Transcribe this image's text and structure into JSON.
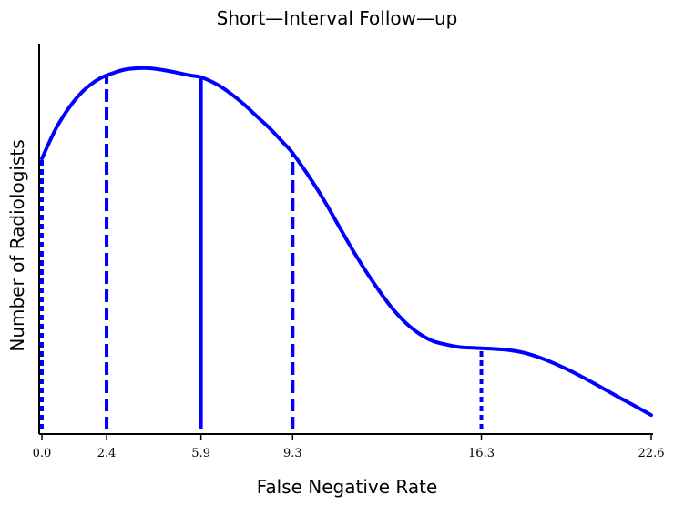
{
  "chart_data": {
    "type": "line",
    "title": "Short—Interval Follow—up",
    "xlabel": "False Negative Rate",
    "ylabel": "Number of Radiologists",
    "xlim": [
      0,
      22.6
    ],
    "ylim": [
      0,
      1
    ],
    "grid": false,
    "color": "#0000ff",
    "x_ticks": [
      "0.0",
      "2.4",
      "5.9",
      "9.3",
      "16.3",
      "22.6"
    ],
    "curve": {
      "x": [
        0.0,
        0.5,
        1.0,
        1.5,
        2.0,
        2.4,
        3.0,
        3.5,
        4.0,
        4.5,
        5.0,
        5.5,
        5.9,
        6.5,
        7.0,
        7.5,
        8.0,
        8.5,
        9.0,
        9.3,
        10.0,
        10.5,
        11.0,
        11.5,
        12.0,
        12.5,
        13.0,
        13.5,
        14.0,
        14.5,
        15.0,
        15.5,
        16.0,
        16.3,
        17.0,
        17.5,
        18.0,
        18.5,
        19.0,
        19.5,
        20.0,
        20.5,
        21.0,
        21.5,
        22.0,
        22.6
      ],
      "y": [
        0.75,
        0.83,
        0.89,
        0.935,
        0.965,
        0.98,
        0.995,
        1.0,
        1.0,
        0.995,
        0.988,
        0.98,
        0.975,
        0.955,
        0.93,
        0.9,
        0.865,
        0.83,
        0.79,
        0.765,
        0.69,
        0.63,
        0.565,
        0.5,
        0.44,
        0.385,
        0.335,
        0.295,
        0.265,
        0.245,
        0.235,
        0.228,
        0.226,
        0.225,
        0.222,
        0.218,
        0.21,
        0.198,
        0.183,
        0.166,
        0.147,
        0.127,
        0.106,
        0.085,
        0.065,
        0.04
      ]
    },
    "vertical_lines": [
      {
        "x": 0.0,
        "style": "dotted"
      },
      {
        "x": 2.4,
        "style": "dashed"
      },
      {
        "x": 5.9,
        "style": "solid"
      },
      {
        "x": 9.3,
        "style": "dashed"
      },
      {
        "x": 16.3,
        "style": "dotted"
      }
    ]
  }
}
